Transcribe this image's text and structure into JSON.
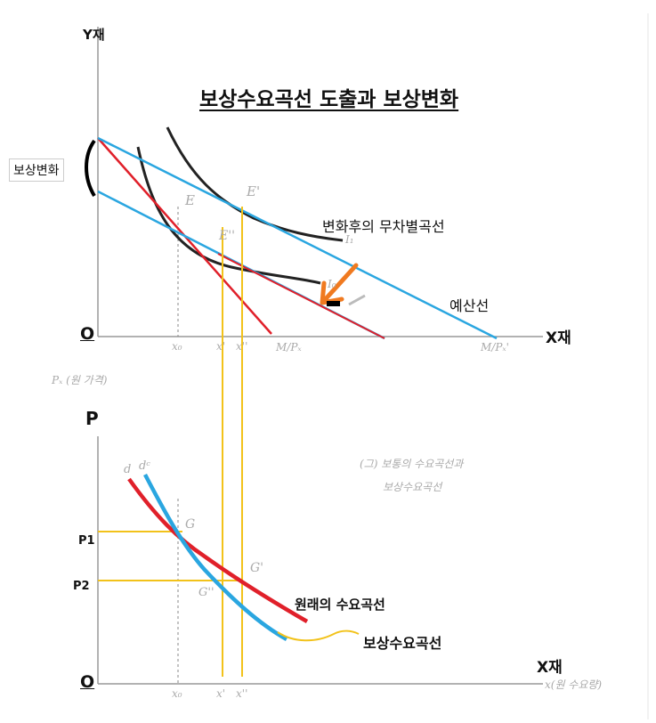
{
  "title": "보상수요곡선 도출과 보상변화",
  "top": {
    "y_axis": "Y재",
    "x_axis": "X재",
    "origin": "O",
    "compensation_label": "보상변화",
    "indiff_label": "변화후의 무차별곡선",
    "budget_label": "예산선",
    "points": {
      "E": "E",
      "E2": "E'",
      "E3": "E''"
    },
    "ticks": {
      "x0": "x₀",
      "x1": "x'",
      "x2": "x''"
    },
    "curve_tags": {
      "I0": "I₀",
      "I1": "I₁"
    },
    "mx": "M/Pₓ",
    "mx2": "M/Pₓ'"
  },
  "mid": {
    "price_caption": "Pₓ (원 가격)",
    "fig_caption_1": "(그) 보통의 수요곡선과",
    "fig_caption_2": "보상수요곡선"
  },
  "bottom": {
    "y_axis": "P",
    "x_axis": "X재",
    "origin": "O",
    "p1": "P1",
    "p2": "P2",
    "ordinary_label": "원래의 수요곡선",
    "compensated_label": "보상수요곡선",
    "qty_caption": "x(원 수요량)",
    "points": {
      "G": "G",
      "G2": "G'",
      "G3": "G''"
    },
    "curve_tags": {
      "d": "d",
      "dc": "dᶜ"
    },
    "ticks": {
      "x0": "x₀",
      "x1": "x'",
      "x2": "x''"
    }
  },
  "colors": {
    "blue": "#2aa6e0",
    "red": "#e0202a",
    "yellow": "#f2c21a",
    "orange": "#f07a20",
    "black": "#111111",
    "grey": "#888888"
  }
}
